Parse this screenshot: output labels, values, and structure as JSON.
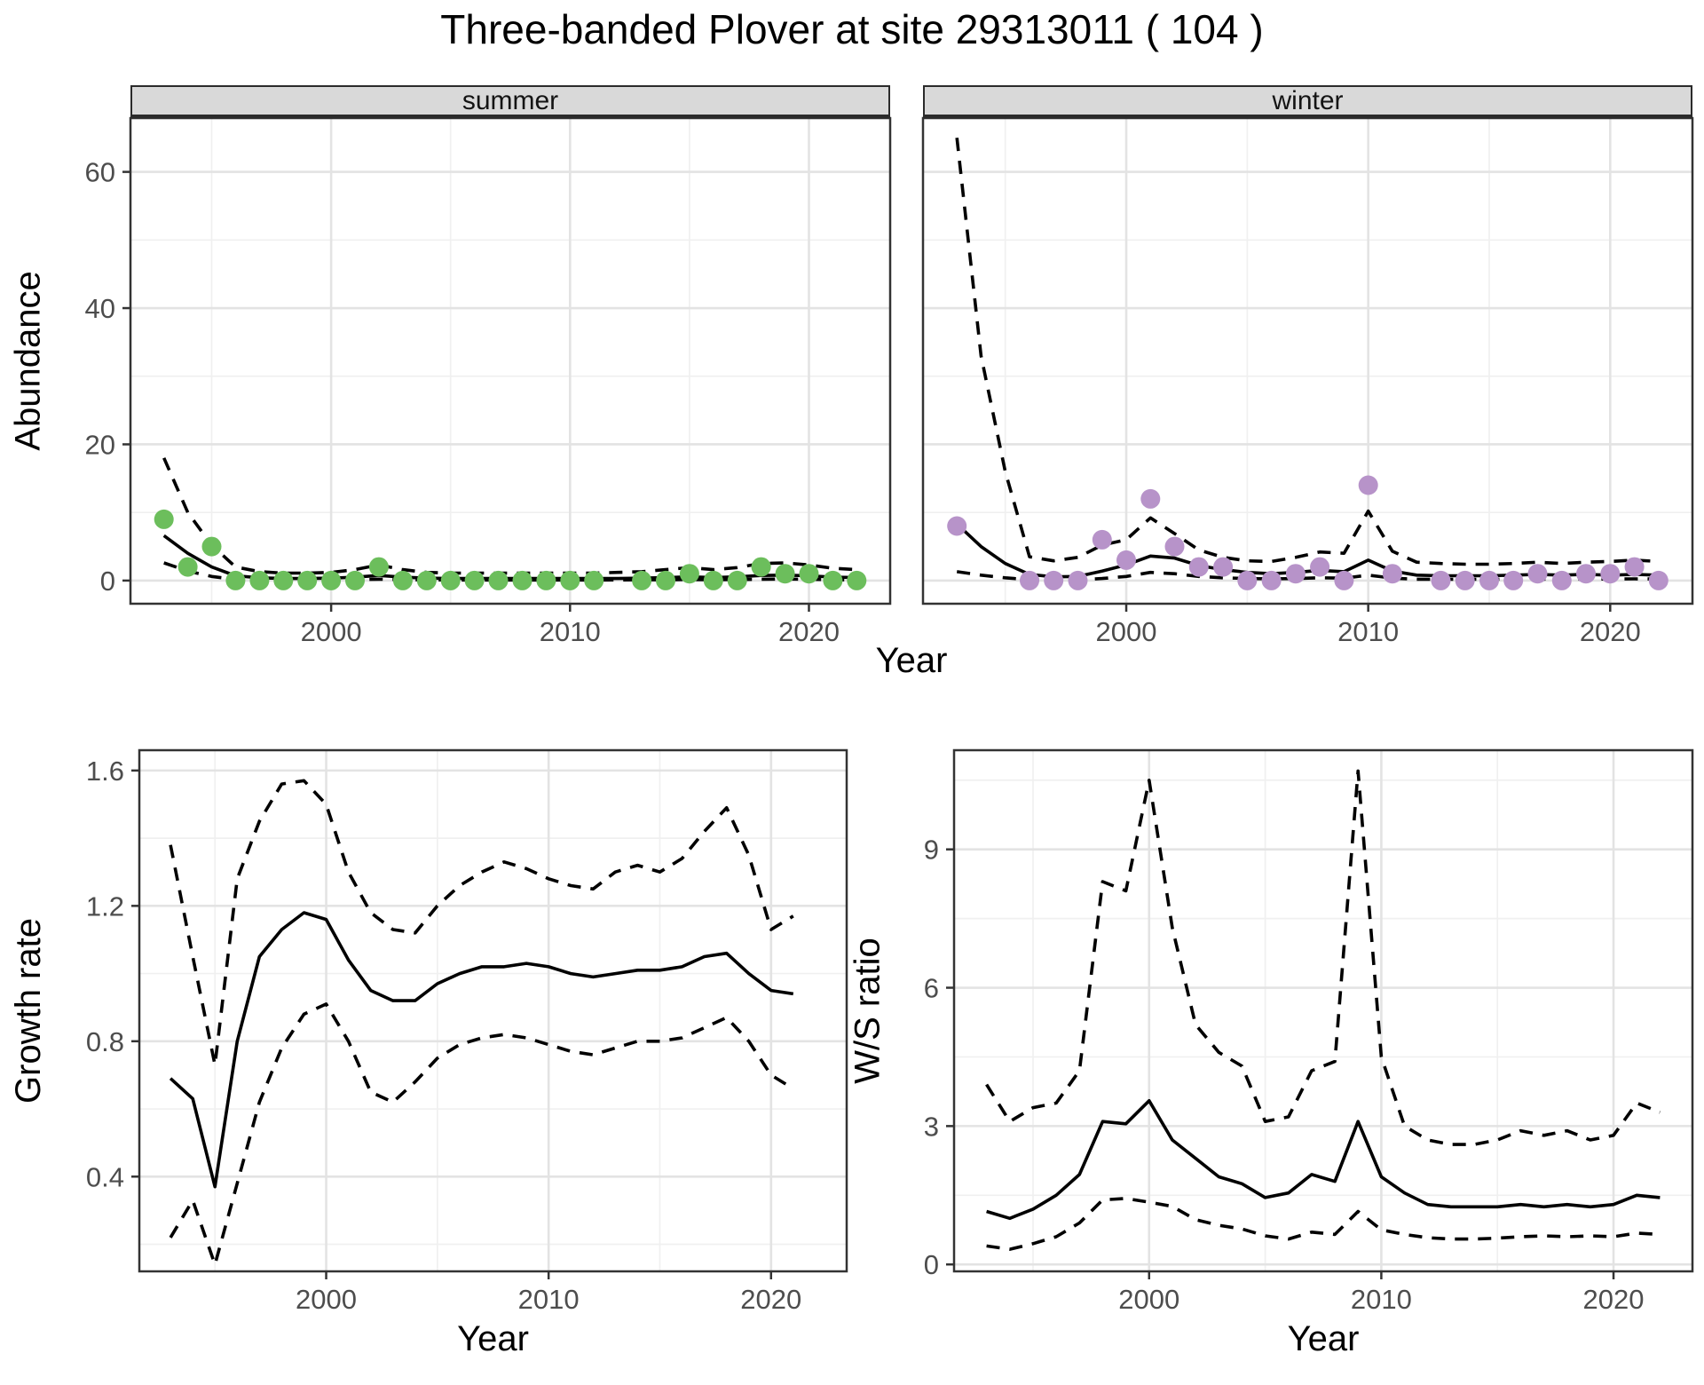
{
  "title": "Three-banded Plover at site 29313011 ( 104 )",
  "facets": {
    "summer": "summer",
    "winter": "winter"
  },
  "axis_titles": {
    "abundance": "Abundance",
    "year_top": "Year",
    "growth": "Growth rate",
    "ws": "W/S ratio",
    "year_growth": "Year",
    "year_ws": "Year"
  },
  "colors": {
    "summer_point": "#6CBE5C",
    "winter_point": "#B793C9",
    "line": "#000000",
    "grid_major": "#E3E3E3",
    "grid_minor": "#F0F0F0",
    "panel_border": "#333333",
    "tick_text": "#4D4D4D",
    "strip_bg": "#D9D9D9"
  },
  "chart_data": [
    {
      "id": "summer",
      "type": "line",
      "facet_label": "summer",
      "xlabel": "Year",
      "ylabel": "Abundance",
      "xlim": [
        1991.6,
        2023.4
      ],
      "ylim": [
        -3.4,
        67.9
      ],
      "xticks": [
        2000,
        2010,
        2020
      ],
      "xticklabels": [
        "2000",
        "2010",
        "2020"
      ],
      "xminor": [
        1995,
        2005,
        2015
      ],
      "yticks": [
        0,
        20,
        40,
        60
      ],
      "yticklabels": [
        "0",
        "20",
        "40",
        "60"
      ],
      "yminor": [
        10,
        30,
        50
      ],
      "show_ytick_labels": true,
      "points": {
        "color": "#6CBE5C",
        "x": [
          1993,
          1994,
          1995,
          1996,
          1997,
          1998,
          1999,
          2000,
          2001,
          2002,
          2003,
          2004,
          2005,
          2006,
          2007,
          2008,
          2009,
          2010,
          2011,
          2013,
          2014,
          2015,
          2016,
          2017,
          2018,
          2019,
          2020,
          2021,
          2022
        ],
        "y": [
          9,
          2,
          5,
          0,
          0,
          0,
          0,
          0,
          0,
          2,
          0,
          0,
          0,
          0,
          0,
          0,
          0,
          0,
          0,
          0,
          0,
          1,
          0,
          0,
          2,
          1,
          1,
          0,
          0
        ]
      },
      "series": [
        {
          "name": "estimate",
          "style": "solid",
          "x": [
            1993,
            1994,
            1995,
            1996,
            1997,
            1998,
            1999,
            2000,
            2001,
            2002,
            2003,
            2004,
            2005,
            2006,
            2007,
            2008,
            2009,
            2010,
            2011,
            2012,
            2013,
            2014,
            2015,
            2016,
            2017,
            2018,
            2019,
            2020,
            2021,
            2022
          ],
          "y": [
            6.6,
            4.0,
            2.0,
            0.7,
            0.4,
            0.3,
            0.3,
            0.35,
            0.5,
            0.75,
            0.5,
            0.35,
            0.3,
            0.3,
            0.3,
            0.3,
            0.3,
            0.3,
            0.3,
            0.3,
            0.35,
            0.45,
            0.55,
            0.45,
            0.55,
            0.75,
            0.8,
            0.7,
            0.5,
            0.45
          ]
        },
        {
          "name": "upper-95ci",
          "style": "dashed",
          "x": [
            1993,
            1994,
            1995,
            1996,
            1997,
            1998,
            1999,
            2000,
            2001,
            2002,
            2003,
            2004,
            2005,
            2006,
            2007,
            2008,
            2009,
            2010,
            2011,
            2012,
            2013,
            2014,
            2015,
            2016,
            2017,
            2018,
            2019,
            2020,
            2021,
            2022
          ],
          "y": [
            18,
            10,
            5.2,
            2.0,
            1.3,
            1.1,
            1.1,
            1.2,
            1.6,
            2.3,
            1.6,
            1.2,
            1.1,
            1.1,
            1.1,
            1.1,
            1.1,
            1.1,
            1.1,
            1.2,
            1.3,
            1.6,
            1.9,
            1.6,
            1.9,
            2.5,
            2.6,
            2.3,
            1.8,
            1.6
          ]
        },
        {
          "name": "lower-95ci",
          "style": "dashed",
          "x": [
            1993,
            1994,
            1995,
            1996,
            1997,
            1998,
            1999,
            2000,
            2001,
            2002,
            2003,
            2004,
            2005,
            2006,
            2007,
            2008,
            2009,
            2010,
            2011,
            2012,
            2013,
            2014,
            2015,
            2016,
            2017,
            2018,
            2019,
            2020,
            2021,
            2022
          ],
          "y": [
            2.6,
            1.4,
            0.6,
            0.15,
            0.1,
            0.08,
            0.08,
            0.09,
            0.12,
            0.2,
            0.12,
            0.09,
            0.08,
            0.08,
            0.08,
            0.08,
            0.08,
            0.08,
            0.08,
            0.09,
            0.1,
            0.12,
            0.15,
            0.12,
            0.15,
            0.2,
            0.22,
            0.19,
            0.12,
            0.1
          ]
        }
      ]
    },
    {
      "id": "winter",
      "type": "line",
      "facet_label": "winter",
      "xlabel": "Year",
      "ylabel": "Abundance",
      "xlim": [
        1991.6,
        2023.4
      ],
      "ylim": [
        -3.4,
        67.9
      ],
      "xticks": [
        2000,
        2010,
        2020
      ],
      "xticklabels": [
        "2000",
        "2010",
        "2020"
      ],
      "xminor": [
        1995,
        2005,
        2015
      ],
      "yticks": [
        0,
        20,
        40,
        60
      ],
      "yticklabels": [
        "0",
        "20",
        "40",
        "60"
      ],
      "yminor": [
        10,
        30,
        50
      ],
      "show_ytick_labels": false,
      "points": {
        "color": "#B793C9",
        "x": [
          1993,
          1996,
          1997,
          1998,
          1999,
          2000,
          2001,
          2002,
          2003,
          2004,
          2005,
          2006,
          2007,
          2008,
          2009,
          2010,
          2011,
          2013,
          2014,
          2015,
          2016,
          2017,
          2018,
          2019,
          2020,
          2021,
          2022
        ],
        "y": [
          8,
          0,
          0,
          0,
          6,
          3,
          12,
          5,
          2,
          2,
          0,
          0,
          1,
          2,
          0,
          14,
          1,
          0,
          0,
          0,
          0,
          1,
          0,
          1,
          1,
          2,
          0
        ]
      },
      "series": [
        {
          "name": "estimate",
          "style": "solid",
          "x": [
            1993,
            1994,
            1995,
            1996,
            1997,
            1998,
            1999,
            2000,
            2001,
            2002,
            2003,
            2004,
            2005,
            2006,
            2007,
            2008,
            2009,
            2010,
            2011,
            2012,
            2013,
            2014,
            2015,
            2016,
            2017,
            2018,
            2019,
            2020,
            2021,
            2022
          ],
          "y": [
            8.3,
            5.0,
            2.5,
            0.9,
            0.55,
            0.6,
            1.4,
            2.3,
            3.6,
            3.3,
            2.2,
            1.6,
            1.2,
            1.0,
            1.2,
            1.5,
            1.3,
            3.0,
            1.4,
            0.8,
            0.7,
            0.7,
            0.7,
            0.8,
            0.9,
            0.8,
            0.9,
            0.8,
            0.9,
            0.8
          ]
        },
        {
          "name": "upper-95ci",
          "style": "dashed",
          "x": [
            1993,
            1994,
            1995,
            1996,
            1997,
            1998,
            1999,
            2000,
            2001,
            2002,
            2003,
            2004,
            2005,
            2006,
            2007,
            2008,
            2009,
            2010,
            2011,
            2012,
            2013,
            2014,
            2015,
            2016,
            2017,
            2018,
            2019,
            2020,
            2021,
            2022
          ],
          "y": [
            65,
            33,
            16,
            3.5,
            2.9,
            3.4,
            5.2,
            6.0,
            9.2,
            6.9,
            4.5,
            3.4,
            2.9,
            2.8,
            3.4,
            4.2,
            4.0,
            10.2,
            4.3,
            2.7,
            2.5,
            2.4,
            2.4,
            2.5,
            2.7,
            2.5,
            2.7,
            2.8,
            3.0,
            2.8
          ]
        },
        {
          "name": "lower-95ci",
          "style": "dashed",
          "x": [
            1993,
            1994,
            1995,
            1996,
            1997,
            1998,
            1999,
            2000,
            2001,
            2002,
            2003,
            2004,
            2005,
            2006,
            2007,
            2008,
            2009,
            2010,
            2011,
            2012,
            2013,
            2014,
            2015,
            2016,
            2017,
            2018,
            2019,
            2020,
            2021,
            2022
          ],
          "y": [
            1.3,
            0.8,
            0.4,
            0.12,
            0.1,
            0.12,
            0.3,
            0.6,
            1.2,
            1.0,
            0.6,
            0.4,
            0.3,
            0.25,
            0.3,
            0.4,
            0.35,
            0.8,
            0.35,
            0.2,
            0.18,
            0.18,
            0.18,
            0.2,
            0.22,
            0.2,
            0.22,
            0.22,
            0.25,
            0.22
          ]
        }
      ]
    },
    {
      "id": "growth",
      "type": "line",
      "facet_label": "",
      "xlabel": "Year",
      "ylabel": "Growth rate",
      "xlim": [
        1991.6,
        2023.4
      ],
      "ylim": [
        0.12,
        1.66
      ],
      "xticks": [
        2000,
        2010,
        2020
      ],
      "xticklabels": [
        "2000",
        "2010",
        "2020"
      ],
      "xminor": [
        1995,
        2005,
        2015
      ],
      "yticks": [
        0.4,
        0.8,
        1.2,
        1.6
      ],
      "yticklabels": [
        "0.4",
        "0.8",
        "1.2",
        "1.6"
      ],
      "yminor": [
        0.2,
        0.6,
        1.0,
        1.4
      ],
      "show_ytick_labels": true,
      "points": null,
      "series": [
        {
          "name": "estimate",
          "style": "solid",
          "x": [
            1993,
            1994,
            1995,
            1996,
            1997,
            1998,
            1999,
            2000,
            2001,
            2002,
            2003,
            2004,
            2005,
            2006,
            2007,
            2008,
            2009,
            2010,
            2011,
            2012,
            2013,
            2014,
            2015,
            2016,
            2017,
            2018,
            2019,
            2020,
            2021
          ],
          "y": [
            0.69,
            0.63,
            0.37,
            0.8,
            1.05,
            1.13,
            1.18,
            1.16,
            1.04,
            0.95,
            0.92,
            0.92,
            0.97,
            1.0,
            1.02,
            1.02,
            1.03,
            1.02,
            1.0,
            0.99,
            1.0,
            1.01,
            1.01,
            1.02,
            1.05,
            1.06,
            1.0,
            0.95,
            0.94
          ]
        },
        {
          "name": "upper-95ci",
          "style": "dashed",
          "x": [
            1993,
            1994,
            1995,
            1996,
            1997,
            1998,
            1999,
            2000,
            2001,
            2002,
            2003,
            2004,
            2005,
            2006,
            2007,
            2008,
            2009,
            2010,
            2011,
            2012,
            2013,
            2014,
            2015,
            2016,
            2017,
            2018,
            2019,
            2020,
            2021
          ],
          "y": [
            1.38,
            1.05,
            0.73,
            1.28,
            1.45,
            1.56,
            1.57,
            1.5,
            1.3,
            1.18,
            1.13,
            1.12,
            1.2,
            1.26,
            1.3,
            1.33,
            1.31,
            1.28,
            1.26,
            1.25,
            1.3,
            1.32,
            1.3,
            1.34,
            1.42,
            1.49,
            1.35,
            1.13,
            1.17
          ]
        },
        {
          "name": "lower-95ci",
          "style": "dashed",
          "x": [
            1993,
            1994,
            1995,
            1996,
            1997,
            1998,
            1999,
            2000,
            2001,
            2002,
            2003,
            2004,
            2005,
            2006,
            2007,
            2008,
            2009,
            2010,
            2011,
            2012,
            2013,
            2014,
            2015,
            2016,
            2017,
            2018,
            2019,
            2020,
            2021
          ],
          "y": [
            0.22,
            0.33,
            0.14,
            0.38,
            0.62,
            0.78,
            0.88,
            0.91,
            0.8,
            0.65,
            0.62,
            0.68,
            0.75,
            0.79,
            0.81,
            0.82,
            0.81,
            0.79,
            0.77,
            0.76,
            0.78,
            0.8,
            0.8,
            0.81,
            0.84,
            0.87,
            0.8,
            0.7,
            0.66
          ]
        }
      ]
    },
    {
      "id": "ws",
      "type": "line",
      "facet_label": "",
      "xlabel": "Year",
      "ylabel": "W/S ratio",
      "xlim": [
        1991.6,
        2023.4
      ],
      "ylim": [
        -0.15,
        11.15
      ],
      "xticks": [
        2000,
        2010,
        2020
      ],
      "xticklabels": [
        "2000",
        "2010",
        "2020"
      ],
      "xminor": [
        1995,
        2005,
        2015
      ],
      "yticks": [
        0,
        3,
        6,
        9
      ],
      "yticklabels": [
        "0",
        "3",
        "6",
        "9"
      ],
      "yminor": [
        1.5,
        4.5,
        7.5,
        10.5
      ],
      "show_ytick_labels": true,
      "points": null,
      "series": [
        {
          "name": "estimate",
          "style": "solid",
          "x": [
            1993,
            1994,
            1995,
            1996,
            1997,
            1998,
            1999,
            2000,
            2001,
            2002,
            2003,
            2004,
            2005,
            2006,
            2007,
            2008,
            2009,
            2010,
            2011,
            2012,
            2013,
            2014,
            2015,
            2016,
            2017,
            2018,
            2019,
            2020,
            2021,
            2022
          ],
          "y": [
            1.15,
            1.0,
            1.2,
            1.5,
            1.95,
            3.1,
            3.05,
            3.55,
            2.7,
            2.3,
            1.9,
            1.75,
            1.45,
            1.55,
            1.95,
            1.8,
            3.1,
            1.9,
            1.55,
            1.3,
            1.25,
            1.25,
            1.25,
            1.3,
            1.25,
            1.3,
            1.25,
            1.3,
            1.5,
            1.45
          ]
        },
        {
          "name": "upper-95ci",
          "style": "dashed",
          "x": [
            1993,
            1994,
            1995,
            1996,
            1997,
            1998,
            1999,
            2000,
            2001,
            2002,
            2003,
            2004,
            2005,
            2006,
            2007,
            2008,
            2009,
            2010,
            2011,
            2012,
            2013,
            2014,
            2015,
            2016,
            2017,
            2018,
            2019,
            2020,
            2021,
            2022
          ],
          "y": [
            3.9,
            3.1,
            3.4,
            3.5,
            4.2,
            8.3,
            8.1,
            10.5,
            7.3,
            5.2,
            4.6,
            4.3,
            3.1,
            3.2,
            4.2,
            4.4,
            10.7,
            4.5,
            3.0,
            2.7,
            2.6,
            2.6,
            2.7,
            2.9,
            2.8,
            2.9,
            2.7,
            2.8,
            3.5,
            3.3
          ]
        },
        {
          "name": "lower-95ci",
          "style": "dashed",
          "x": [
            1993,
            1994,
            1995,
            1996,
            1997,
            1998,
            1999,
            2000,
            2001,
            2002,
            2003,
            2004,
            2005,
            2006,
            2007,
            2008,
            2009,
            2010,
            2011,
            2012,
            2013,
            2014,
            2015,
            2016,
            2017,
            2018,
            2019,
            2020,
            2021,
            2022
          ],
          "y": [
            0.4,
            0.33,
            0.45,
            0.6,
            0.9,
            1.4,
            1.43,
            1.35,
            1.26,
            0.97,
            0.85,
            0.77,
            0.62,
            0.55,
            0.7,
            0.65,
            1.15,
            0.75,
            0.65,
            0.58,
            0.55,
            0.55,
            0.57,
            0.6,
            0.62,
            0.6,
            0.62,
            0.6,
            0.68,
            0.65
          ]
        }
      ]
    }
  ]
}
